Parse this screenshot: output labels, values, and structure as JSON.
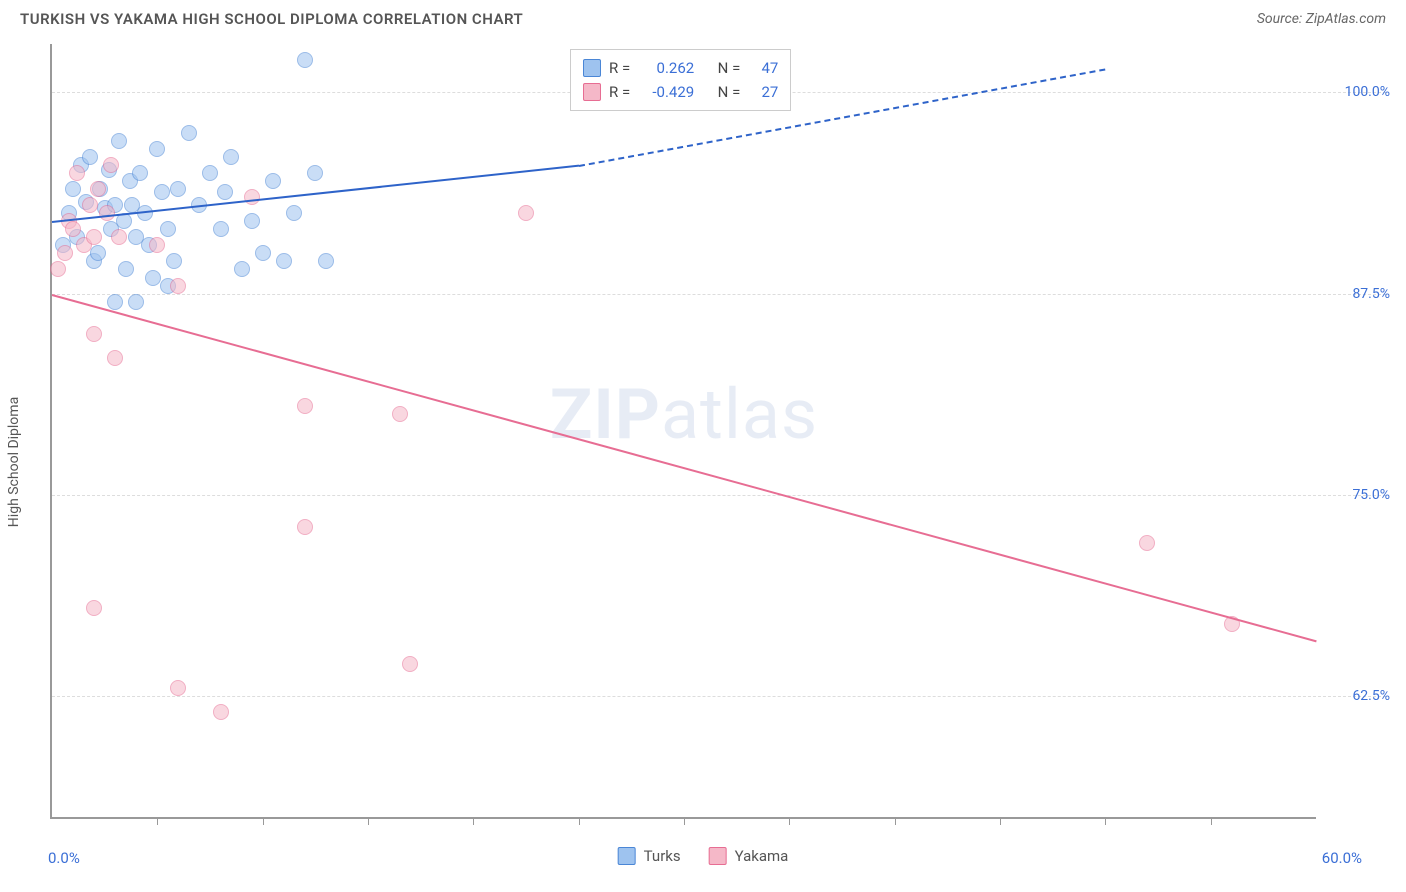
{
  "header": {
    "title": "TURKISH VS YAKAMA HIGH SCHOOL DIPLOMA CORRELATION CHART",
    "source": "Source: ZipAtlas.com"
  },
  "watermark": {
    "bold": "ZIP",
    "rest": "atlas"
  },
  "chart": {
    "type": "scatter",
    "ylabel": "High School Diploma",
    "xlim": [
      0,
      60
    ],
    "ylim": [
      55,
      103
    ],
    "x_min_label": "0.0%",
    "x_max_label": "60.0%",
    "y_gridlines": [
      62.5,
      75.0,
      87.5,
      100.0
    ],
    "y_tick_labels": [
      "62.5%",
      "75.0%",
      "87.5%",
      "100.0%"
    ],
    "x_tick_positions": [
      5,
      10,
      15,
      20,
      25,
      30,
      35,
      40,
      45,
      50,
      55
    ],
    "background_color": "#ffffff",
    "grid_color": "#dddddd",
    "marker_radius": 8,
    "marker_opacity": 0.55,
    "series": [
      {
        "name": "Turks",
        "color_fill": "#9ec3ef",
        "color_stroke": "#4a86d6",
        "R": "0.262",
        "N": "47",
        "trend": {
          "x0": 0,
          "y0": 92.0,
          "x1": 25,
          "y1": 95.5,
          "dash_x1": 50,
          "dash_y1": 101.5,
          "color": "#2e63c9",
          "width": 2
        },
        "points": [
          [
            0.5,
            90.5
          ],
          [
            0.8,
            92.5
          ],
          [
            1.0,
            94.0
          ],
          [
            1.2,
            91.0
          ],
          [
            1.4,
            95.5
          ],
          [
            1.6,
            93.2
          ],
          [
            1.8,
            96.0
          ],
          [
            2.0,
            89.5
          ],
          [
            2.2,
            90.0
          ],
          [
            2.3,
            94.0
          ],
          [
            2.5,
            92.8
          ],
          [
            2.7,
            95.2
          ],
          [
            2.8,
            91.5
          ],
          [
            3.0,
            93.0
          ],
          [
            3.2,
            97.0
          ],
          [
            3.4,
            92.0
          ],
          [
            3.5,
            89.0
          ],
          [
            3.7,
            94.5
          ],
          [
            3.8,
            93.0
          ],
          [
            4.0,
            91.0
          ],
          [
            4.2,
            95.0
          ],
          [
            4.4,
            92.5
          ],
          [
            4.6,
            90.5
          ],
          [
            4.8,
            88.5
          ],
          [
            5.0,
            96.5
          ],
          [
            5.2,
            93.8
          ],
          [
            5.5,
            91.5
          ],
          [
            5.8,
            89.5
          ],
          [
            6.0,
            94.0
          ],
          [
            3.0,
            87.0
          ],
          [
            6.5,
            97.5
          ],
          [
            7.0,
            93.0
          ],
          [
            7.5,
            95.0
          ],
          [
            8.0,
            91.5
          ],
          [
            8.2,
            93.8
          ],
          [
            8.5,
            96.0
          ],
          [
            9.0,
            89.0
          ],
          [
            9.5,
            92.0
          ],
          [
            10.0,
            90.0
          ],
          [
            10.5,
            94.5
          ],
          [
            11.0,
            89.5
          ],
          [
            11.5,
            92.5
          ],
          [
            12.0,
            102.0
          ],
          [
            12.5,
            95.0
          ],
          [
            13.0,
            89.5
          ],
          [
            4.0,
            87.0
          ],
          [
            5.5,
            88.0
          ]
        ]
      },
      {
        "name": "Yakama",
        "color_fill": "#f5b8c8",
        "color_stroke": "#e76d93",
        "R": "-0.429",
        "N": "27",
        "trend": {
          "x0": 0,
          "y0": 87.5,
          "x1": 60,
          "y1": 66.0,
          "color": "#e76d93",
          "width": 2
        },
        "points": [
          [
            0.3,
            89.0
          ],
          [
            0.6,
            90.0
          ],
          [
            0.8,
            92.0
          ],
          [
            1.0,
            91.5
          ],
          [
            1.2,
            95.0
          ],
          [
            1.5,
            90.5
          ],
          [
            1.8,
            93.0
          ],
          [
            2.0,
            91.0
          ],
          [
            2.2,
            94.0
          ],
          [
            2.6,
            92.5
          ],
          [
            2.8,
            95.5
          ],
          [
            3.2,
            91.0
          ],
          [
            5.0,
            90.5
          ],
          [
            6.0,
            88.0
          ],
          [
            2.0,
            85.0
          ],
          [
            3.0,
            83.5
          ],
          [
            12.0,
            80.5
          ],
          [
            16.5,
            80.0
          ],
          [
            12.0,
            73.0
          ],
          [
            22.5,
            92.5
          ],
          [
            2.0,
            68.0
          ],
          [
            6.0,
            63.0
          ],
          [
            8.0,
            61.5
          ],
          [
            17.0,
            64.5
          ],
          [
            52.0,
            72.0
          ],
          [
            56.0,
            67.0
          ],
          [
            9.5,
            93.5
          ]
        ]
      }
    ],
    "top_legend": {
      "r_label": "R =",
      "n_label": "N ="
    },
    "bottom_legend_labels": [
      "Turks",
      "Yakama"
    ]
  }
}
